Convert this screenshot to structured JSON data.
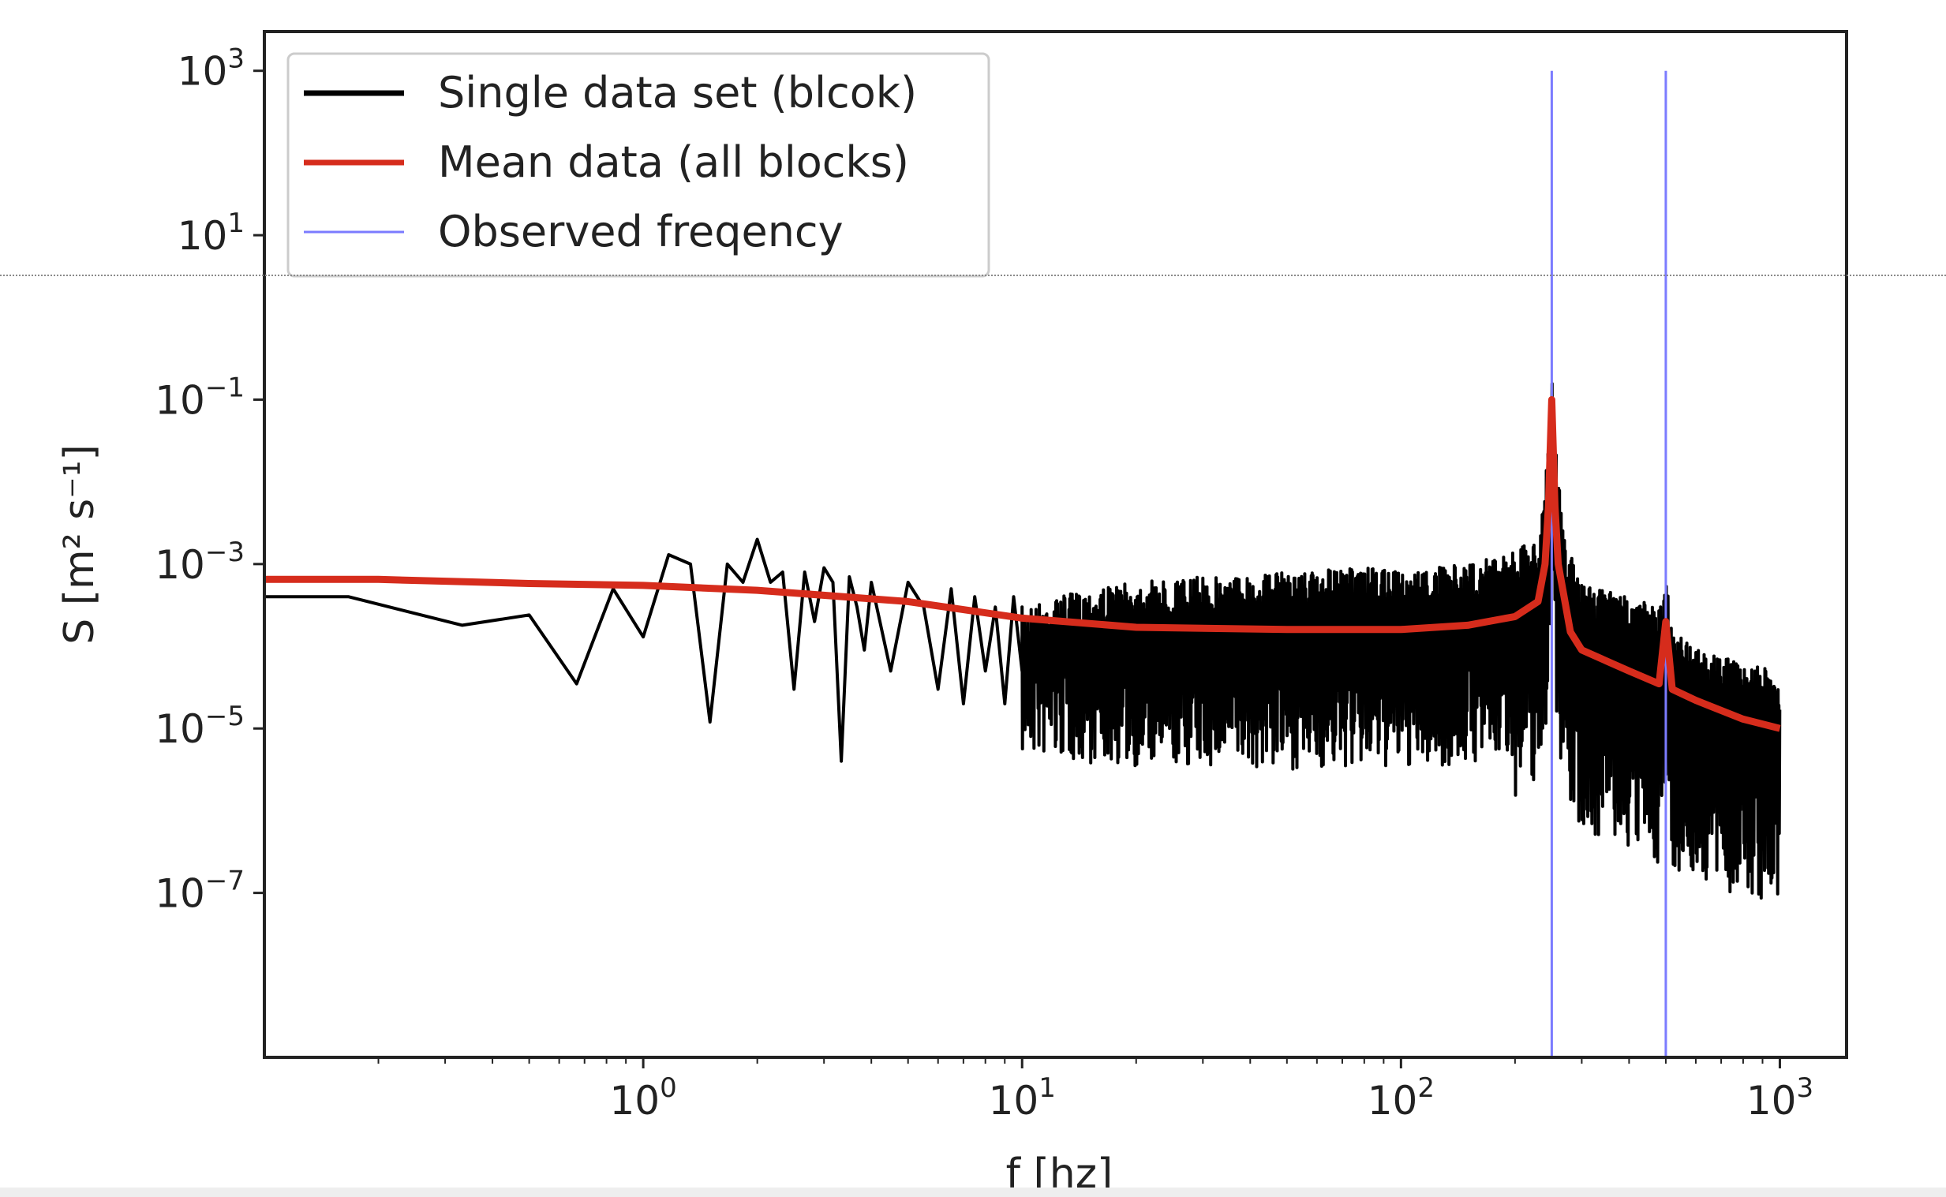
{
  "chart_data": {
    "type": "line",
    "xscale": "log",
    "yscale": "log",
    "xlabel": "f [hz]",
    "ylabel": "S [m² s⁻¹]",
    "xlim": [
      0.1,
      1500
    ],
    "ylim": [
      1e-09,
      3000
    ],
    "x_ticks": [
      {
        "value": 1,
        "base": "10",
        "exp": "0"
      },
      {
        "value": 10,
        "base": "10",
        "exp": "1"
      },
      {
        "value": 100,
        "base": "10",
        "exp": "2"
      },
      {
        "value": 1000,
        "base": "10",
        "exp": "3"
      }
    ],
    "y_ticks": [
      {
        "value": 1000,
        "base": "10",
        "exp": "3"
      },
      {
        "value": 10,
        "base": "10",
        "exp": "1"
      },
      {
        "value": 0.1,
        "base": "10",
        "exp": "−1"
      },
      {
        "value": 0.001,
        "base": "10",
        "exp": "−3"
      },
      {
        "value": 1e-05,
        "base": "10",
        "exp": "−5"
      },
      {
        "value": 1e-07,
        "base": "10",
        "exp": "−7"
      }
    ],
    "legend_position": "top-left",
    "grid": false,
    "series": [
      {
        "name": "Single data set (blcok)",
        "color": "#000000",
        "x": [
          0.1,
          0.167,
          0.333,
          0.5,
          0.667,
          0.833,
          1.0,
          1.167,
          1.333,
          1.5,
          1.667,
          1.833,
          2.0,
          2.167,
          2.333,
          2.5,
          2.667,
          2.833,
          3.0,
          3.167,
          3.333,
          3.5,
          3.667,
          3.833,
          4.0,
          4.5,
          5,
          5.5,
          6,
          6.5,
          7,
          7.5,
          8,
          8.5,
          9,
          9.5,
          10,
          12,
          15,
          20,
          30,
          50,
          80,
          100,
          150,
          200,
          230,
          245,
          250,
          255,
          270,
          300,
          400,
          480,
          490,
          500,
          510,
          520,
          600,
          800,
          1000
        ],
        "y": [
          0.0004,
          0.0004,
          0.00018,
          0.00024,
          3.5e-05,
          0.0005,
          0.00013,
          0.0013,
          0.001,
          1.2e-05,
          0.001,
          0.0006,
          0.002,
          0.0006,
          0.0008,
          3e-05,
          0.0008,
          0.0002,
          0.0009,
          0.0006,
          4e-06,
          0.0007,
          0.0003,
          9e-05,
          0.0006,
          5e-05,
          0.0006,
          0.0003,
          3e-05,
          0.0005,
          2e-05,
          0.0004,
          5e-05,
          0.0003,
          2e-05,
          0.0004,
          5e-05,
          0.0003,
          2e-05,
          1e-05,
          3e-06,
          2e-06,
          5e-07,
          2e-06,
          8e-07,
          3e-07,
          4e-08,
          0.0005,
          0.2,
          0.0005,
          1e-06,
          3e-07,
          5e-08,
          3e-07,
          1e-07,
          0.001,
          1e-07,
          3e-08,
          2e-07,
          1e-08,
          2e-08
        ],
        "upper_envelope": {
          "x": [
            10,
            15,
            20,
            30,
            50,
            80,
            100,
            150,
            200,
            230,
            245,
            250,
            255,
            270,
            300,
            400,
            480,
            490,
            500,
            510,
            520,
            600,
            800,
            1000
          ],
          "y": [
            0.0003,
            0.0005,
            0.0006,
            0.0007,
            0.0008,
            0.0009,
            0.0008,
            0.001,
            0.0015,
            0.002,
            0.03,
            0.2,
            0.03,
            0.002,
            0.0006,
            0.0004,
            0.0003,
            0.0003,
            0.001,
            0.0003,
            0.0002,
            0.0001,
            6e-05,
            5e-05
          ]
        }
      },
      {
        "name": "Mean data (all blocks)",
        "color": "#d62c1c",
        "x": [
          0.1,
          0.2,
          0.5,
          1,
          2,
          5,
          10,
          20,
          50,
          100,
          150,
          200,
          230,
          240,
          245,
          250,
          255,
          260,
          280,
          300,
          400,
          480,
          500,
          520,
          600,
          800,
          1000
        ],
        "y": [
          0.00065,
          0.00065,
          0.00058,
          0.00055,
          0.00048,
          0.00035,
          0.00022,
          0.00017,
          0.00016,
          0.00016,
          0.00018,
          0.00023,
          0.00035,
          0.001,
          0.005,
          0.1,
          0.005,
          0.001,
          0.00015,
          9e-05,
          5e-05,
          3.5e-05,
          0.0002,
          3e-05,
          2.2e-05,
          1.3e-05,
          1e-05
        ]
      },
      {
        "name": "Observed freqency",
        "color": "#7b7bff",
        "vlines": [
          250,
          500
        ],
        "y_top": 1000
      }
    ]
  }
}
